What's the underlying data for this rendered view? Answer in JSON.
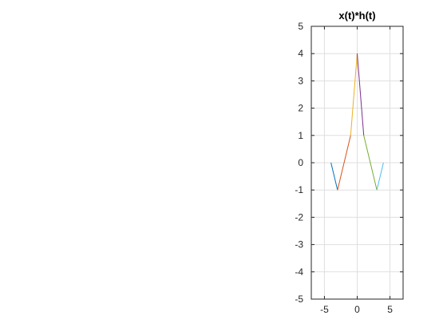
{
  "chart_data": {
    "type": "line",
    "title": "x(t)*h(t)",
    "xlabel": "",
    "ylabel": "",
    "xlim": [
      -7,
      7
    ],
    "ylim": [
      -5,
      5
    ],
    "xticks": [
      -5,
      0,
      5
    ],
    "yticks": [
      -5,
      -4,
      -3,
      -2,
      -1,
      0,
      1,
      2,
      3,
      4,
      5
    ],
    "xtick_labels": [
      "-5",
      "0",
      "5"
    ],
    "ytick_labels": [
      "-5",
      "-4",
      "-3",
      "-2",
      "-1",
      "0",
      "1",
      "2",
      "3",
      "4",
      "5"
    ],
    "grid": true,
    "legend": "none",
    "series": [
      {
        "color": "#0072BD",
        "x": [
          -4,
          -3
        ],
        "y": [
          0,
          -1
        ]
      },
      {
        "color": "#D95319",
        "x": [
          -3,
          -1
        ],
        "y": [
          -1,
          1
        ]
      },
      {
        "color": "#EDB120",
        "x": [
          -1,
          0
        ],
        "y": [
          1,
          4
        ]
      },
      {
        "color": "#7E2F8E",
        "x": [
          0,
          1
        ],
        "y": [
          4,
          1
        ]
      },
      {
        "color": "#77AC30",
        "x": [
          1,
          3
        ],
        "y": [
          1,
          -1
        ]
      },
      {
        "color": "#4DBEEE",
        "x": [
          3,
          4
        ],
        "y": [
          -1,
          0
        ]
      }
    ]
  }
}
